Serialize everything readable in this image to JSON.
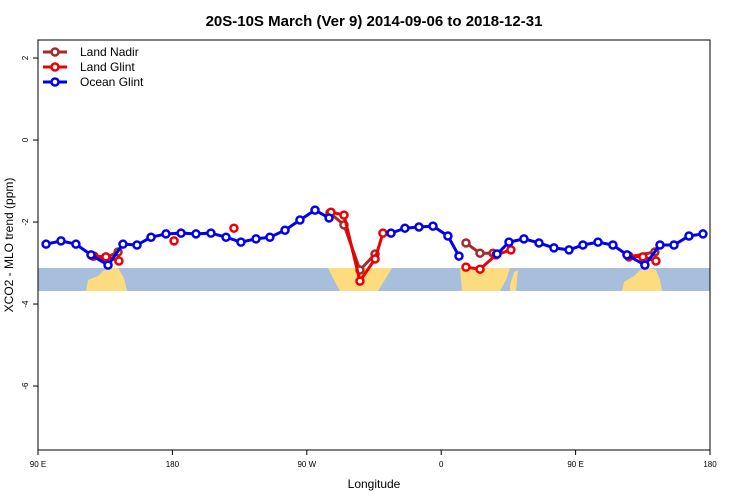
{
  "chart_data": {
    "type": "line",
    "title": "20S-10S March (Ver 9)   2014-09-06 to 2018-12-31",
    "xlabel": "Longitude",
    "ylabel": "XCO2 - MLO trend (ppm)",
    "xlim": [
      90,
      540
    ],
    "xticks": [
      {
        "value": 90,
        "label": "90 E"
      },
      {
        "value": 180,
        "label": "180"
      },
      {
        "value": 270,
        "label": "90 W"
      },
      {
        "value": 360,
        "label": "0"
      },
      {
        "value": 450,
        "label": "90 E"
      },
      {
        "value": 540,
        "label": "180"
      }
    ],
    "ylim": [
      -7.56,
      2.44
    ],
    "yticks": [
      2,
      0,
      -2,
      -4,
      -6
    ],
    "legend": "top-left",
    "series": [
      {
        "name": "Land Nadir",
        "color": "#a52a2a",
        "x": [
          127.5,
          134.9,
          143.6,
          null,
          285.5,
          294.9,
          305.6,
          315.7,
          null,
          376.6,
          386.0,
          394.7,
          null,
          485.7,
          503.1
        ],
        "values": [
          -2.83,
          -2.88,
          -2.73,
          null,
          -1.78,
          -2.07,
          -3.17,
          -2.78,
          null,
          -2.51,
          -2.76,
          -2.76,
          null,
          -2.85,
          -2.73
        ]
      },
      {
        "name": "Land Glint",
        "color": "#ee0000",
        "x": [
          126.8,
          135.5,
          144.2,
          null,
          181.1,
          null,
          221.2,
          null,
          286.2,
          294.9,
          305.6,
          315.7,
          321.0,
          null,
          376.6,
          386.0,
          396.7,
          406.7,
          null,
          485.7,
          495.1,
          503.8
        ],
        "values": [
          -2.83,
          -2.85,
          -2.95,
          null,
          -2.46,
          null,
          -2.15,
          null,
          -1.76,
          -1.83,
          -3.44,
          -2.9,
          -2.27,
          null,
          -3.1,
          -3.15,
          -2.8,
          -2.68,
          null,
          -2.83,
          -2.85,
          -2.95
        ]
      },
      {
        "name": "Ocean Glint",
        "color": "#0000ee",
        "x": [
          95.4,
          105.4,
          115.4,
          125.5,
          136.9,
          146.9,
          156.3,
          165.7,
          175.7,
          185.8,
          195.8,
          205.8,
          215.9,
          225.9,
          236.0,
          245.3,
          255.4,
          265.4,
          275.5,
          284.9,
          null,
          326.4,
          335.7,
          345.1,
          354.5,
          364.5,
          371.9,
          null,
          397.4,
          405.4,
          415.4,
          425.5,
          435.5,
          445.6,
          454.9,
          465.0,
          475.0,
          484.4,
          496.4,
          506.5,
          515.9,
          525.9,
          535.3
        ],
        "values": [
          -2.54,
          -2.46,
          -2.54,
          -2.8,
          -3.05,
          -2.54,
          -2.56,
          -2.37,
          -2.29,
          -2.27,
          -2.29,
          -2.27,
          -2.37,
          -2.49,
          -2.41,
          -2.37,
          -2.2,
          -1.95,
          -1.71,
          -1.9,
          null,
          -2.27,
          -2.15,
          -2.12,
          -2.1,
          -2.34,
          -2.83,
          null,
          -2.78,
          -2.49,
          -2.41,
          -2.51,
          -2.63,
          -2.68,
          -2.56,
          -2.49,
          -2.56,
          -2.8,
          -3.05,
          -2.56,
          -2.56,
          -2.34,
          -2.29
        ]
      }
    ]
  }
}
